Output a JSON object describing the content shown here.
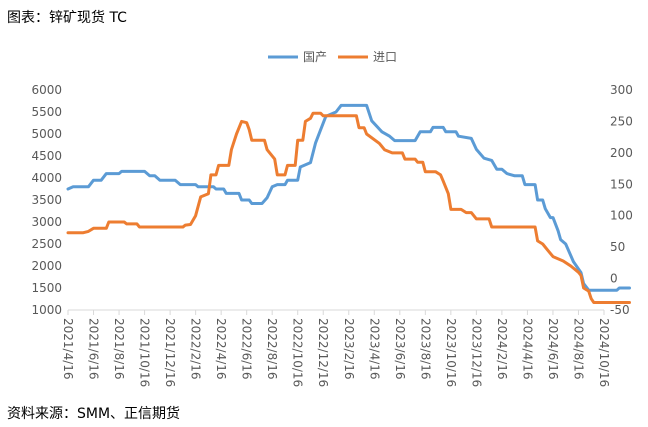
{
  "figure": {
    "title": "图表：锌矿现货 TC",
    "source": "资料来源：SMM、正信期货"
  },
  "chart_data": {
    "type": "line",
    "legend_position": "top-center",
    "grid": false,
    "x_tick_labels": [
      "2021/4/16",
      "2021/6/16",
      "2021/8/16",
      "2021/10/16",
      "2021/12/16",
      "2022/2/16",
      "2022/4/16",
      "2022/6/16",
      "2022/8/16",
      "2022/10/16",
      "2022/12/16",
      "2023/2/16",
      "2023/4/16",
      "2023/6/16",
      "2023/8/16",
      "2023/10/16",
      "2023/12/16",
      "2024/2/16",
      "2024/4/16",
      "2024/6/16",
      "2024/8/16",
      "2024/10/16"
    ],
    "y_left": {
      "min": 1000,
      "max": 6000,
      "ticks": [
        "6000",
        "5500",
        "5000",
        "4500",
        "4000",
        "3500",
        "3000",
        "2500",
        "2000",
        "1500",
        "1000"
      ]
    },
    "y_right": {
      "min": -50,
      "max": 300,
      "ticks": [
        "300",
        "250",
        "200",
        "150",
        "100",
        "50",
        "0",
        "-50"
      ]
    },
    "series": [
      {
        "name": "国产",
        "axis": "left",
        "color": "#5B9BD5",
        "points": [
          [
            0,
            3750
          ],
          [
            0.2,
            3800
          ],
          [
            0.8,
            3800
          ],
          [
            1.0,
            3950
          ],
          [
            1.3,
            3950
          ],
          [
            1.5,
            4100
          ],
          [
            2.0,
            4100
          ],
          [
            2.1,
            4150
          ],
          [
            3.0,
            4150
          ],
          [
            3.2,
            4050
          ],
          [
            3.4,
            4050
          ],
          [
            3.6,
            3950
          ],
          [
            4.2,
            3950
          ],
          [
            4.4,
            3850
          ],
          [
            5.0,
            3850
          ],
          [
            5.1,
            3800
          ],
          [
            5.7,
            3800
          ],
          [
            5.8,
            3750
          ],
          [
            6.1,
            3750
          ],
          [
            6.2,
            3650
          ],
          [
            6.7,
            3650
          ],
          [
            6.8,
            3500
          ],
          [
            7.1,
            3500
          ],
          [
            7.2,
            3420
          ],
          [
            7.6,
            3420
          ],
          [
            7.8,
            3550
          ],
          [
            8.0,
            3800
          ],
          [
            8.2,
            3850
          ],
          [
            8.5,
            3850
          ],
          [
            8.6,
            3950
          ],
          [
            9.0,
            3950
          ],
          [
            9.1,
            4250
          ],
          [
            9.5,
            4350
          ],
          [
            9.7,
            4800
          ],
          [
            9.9,
            5100
          ],
          [
            10.1,
            5400
          ],
          [
            10.5,
            5500
          ],
          [
            10.7,
            5650
          ],
          [
            11.7,
            5650
          ],
          [
            11.9,
            5300
          ],
          [
            12.3,
            5050
          ],
          [
            12.6,
            4950
          ],
          [
            12.8,
            4850
          ],
          [
            13.6,
            4850
          ],
          [
            13.8,
            5050
          ],
          [
            14.2,
            5050
          ],
          [
            14.3,
            5150
          ],
          [
            14.7,
            5150
          ],
          [
            14.8,
            5050
          ],
          [
            15.2,
            5050
          ],
          [
            15.3,
            4950
          ],
          [
            15.8,
            4900
          ],
          [
            16.0,
            4650
          ],
          [
            16.3,
            4450
          ],
          [
            16.6,
            4400
          ],
          [
            16.8,
            4200
          ],
          [
            17.0,
            4200
          ],
          [
            17.2,
            4100
          ],
          [
            17.5,
            4050
          ],
          [
            17.8,
            4050
          ],
          [
            17.9,
            3850
          ],
          [
            18.3,
            3850
          ],
          [
            18.4,
            3500
          ],
          [
            18.6,
            3500
          ],
          [
            18.7,
            3300
          ],
          [
            18.9,
            3100
          ],
          [
            19.0,
            3100
          ],
          [
            19.2,
            2800
          ],
          [
            19.3,
            2600
          ],
          [
            19.5,
            2500
          ],
          [
            19.8,
            2100
          ],
          [
            20.1,
            1850
          ],
          [
            20.2,
            1600
          ],
          [
            20.4,
            1450
          ],
          [
            21.5,
            1450
          ],
          [
            21.6,
            1500
          ],
          [
            22.0,
            1500
          ]
        ]
      },
      {
        "name": "进口",
        "axis": "right",
        "color": "#ED7D31",
        "points": [
          [
            0,
            73
          ],
          [
            0.6,
            73
          ],
          [
            0.8,
            75
          ],
          [
            1.0,
            80
          ],
          [
            1.5,
            80
          ],
          [
            1.6,
            90
          ],
          [
            2.2,
            90
          ],
          [
            2.3,
            87
          ],
          [
            2.7,
            87
          ],
          [
            2.8,
            82
          ],
          [
            4.5,
            82
          ],
          [
            4.6,
            85
          ],
          [
            4.8,
            86
          ],
          [
            5.0,
            100
          ],
          [
            5.2,
            130
          ],
          [
            5.5,
            135
          ],
          [
            5.6,
            165
          ],
          [
            5.8,
            165
          ],
          [
            5.9,
            180
          ],
          [
            6.3,
            180
          ],
          [
            6.4,
            205
          ],
          [
            6.6,
            230
          ],
          [
            6.8,
            250
          ],
          [
            7.0,
            248
          ],
          [
            7.1,
            237
          ],
          [
            7.2,
            220
          ],
          [
            7.7,
            220
          ],
          [
            7.8,
            205
          ],
          [
            8.1,
            190
          ],
          [
            8.2,
            165
          ],
          [
            8.5,
            165
          ],
          [
            8.6,
            180
          ],
          [
            8.9,
            180
          ],
          [
            9.0,
            220
          ],
          [
            9.2,
            220
          ],
          [
            9.3,
            250
          ],
          [
            9.5,
            255
          ],
          [
            9.6,
            263
          ],
          [
            9.9,
            263
          ],
          [
            10.0,
            259
          ],
          [
            11.3,
            259
          ],
          [
            11.4,
            240
          ],
          [
            11.6,
            240
          ],
          [
            11.7,
            230
          ],
          [
            12.2,
            215
          ],
          [
            12.4,
            205
          ],
          [
            12.7,
            200
          ],
          [
            13.1,
            200
          ],
          [
            13.2,
            190
          ],
          [
            13.6,
            190
          ],
          [
            13.7,
            185
          ],
          [
            13.9,
            185
          ],
          [
            14.0,
            170
          ],
          [
            14.4,
            170
          ],
          [
            14.6,
            165
          ],
          [
            14.7,
            155
          ],
          [
            14.9,
            135
          ],
          [
            15.0,
            110
          ],
          [
            15.4,
            110
          ],
          [
            15.6,
            105
          ],
          [
            15.8,
            105
          ],
          [
            16.0,
            95
          ],
          [
            16.5,
            95
          ],
          [
            16.6,
            82
          ],
          [
            18.3,
            82
          ],
          [
            18.4,
            60
          ],
          [
            18.6,
            55
          ],
          [
            18.8,
            45
          ],
          [
            19.0,
            35
          ],
          [
            19.4,
            28
          ],
          [
            19.7,
            20
          ],
          [
            20.0,
            10
          ],
          [
            20.1,
            5
          ],
          [
            20.2,
            -15
          ],
          [
            20.4,
            -20
          ],
          [
            20.5,
            -32
          ],
          [
            20.6,
            -38
          ],
          [
            22.0,
            -38
          ]
        ]
      }
    ]
  }
}
